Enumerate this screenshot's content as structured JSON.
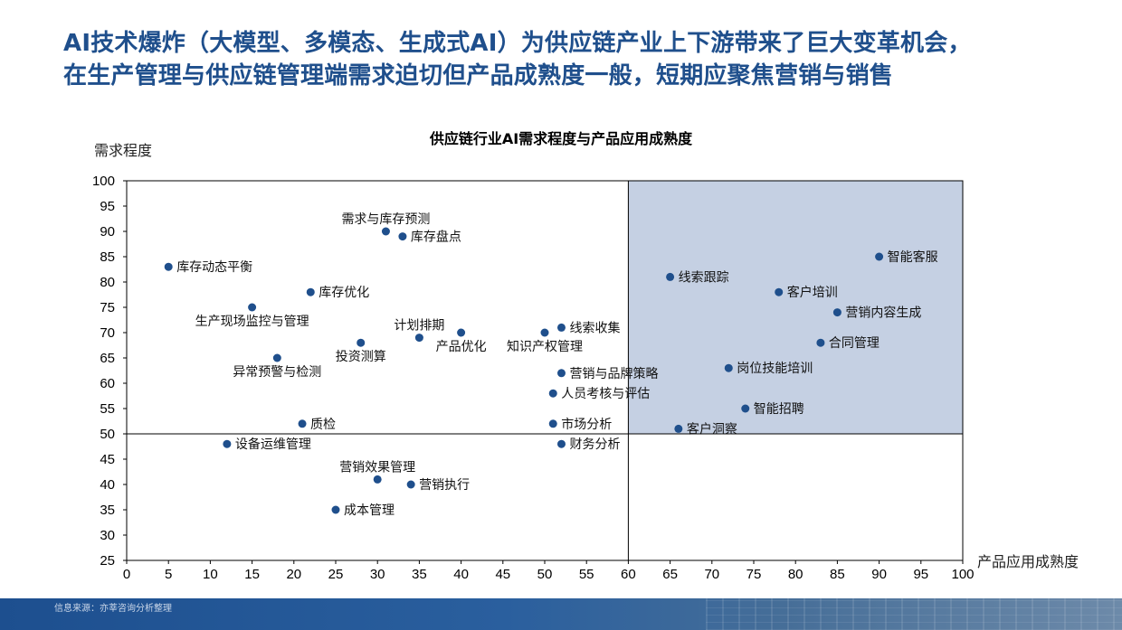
{
  "slide": {
    "title_line1": "AI技术爆炸（大模型、多模态、生成式AI）为供应链产业上下游带来了巨大变革机会，",
    "title_line2": "在生产管理与供应链管理端需求迫切但产品成熟度一般，短期应聚焦营销与销售",
    "source": "信息来源：亦莘咨询分析整理"
  },
  "colors": {
    "title": "#1f4f8c",
    "point": "#1f4f8c",
    "highlight_quadrant": "#c5d0e3",
    "axis": "#000000"
  },
  "chart_data": {
    "type": "scatter",
    "title": "供应链行业AI需求程度与产品应用成熟度",
    "xlabel": "产品应用成熟度",
    "ylabel": "需求程度",
    "xlim": [
      0,
      100
    ],
    "ylim": [
      25,
      100
    ],
    "x_ticks": [
      0,
      5,
      10,
      15,
      20,
      25,
      30,
      35,
      40,
      45,
      50,
      55,
      60,
      65,
      70,
      75,
      80,
      85,
      90,
      95,
      100
    ],
    "y_ticks": [
      25,
      30,
      35,
      40,
      45,
      50,
      55,
      60,
      65,
      70,
      75,
      80,
      85,
      90,
      95,
      100
    ],
    "divider_x": 60,
    "divider_y": 50,
    "highlight_quadrant": "top-right",
    "points": [
      {
        "label": "需求与库存预测",
        "x": 31,
        "y": 90,
        "label_pos": "above"
      },
      {
        "label": "库存盘点",
        "x": 33,
        "y": 89,
        "label_pos": "right"
      },
      {
        "label": "库存动态平衡",
        "x": 5,
        "y": 83,
        "label_pos": "right"
      },
      {
        "label": "库存优化",
        "x": 22,
        "y": 78,
        "label_pos": "right"
      },
      {
        "label": "生产现场监控与管理",
        "x": 15,
        "y": 75,
        "label_pos": "below"
      },
      {
        "label": "计划排期",
        "x": 35,
        "y": 69,
        "label_pos": "above"
      },
      {
        "label": "产品优化",
        "x": 40,
        "y": 70,
        "label_pos": "below"
      },
      {
        "label": "投资测算",
        "x": 28,
        "y": 68,
        "label_pos": "below"
      },
      {
        "label": "异常预警与检测",
        "x": 18,
        "y": 65,
        "label_pos": "below"
      },
      {
        "label": "知识产权管理",
        "x": 50,
        "y": 70,
        "label_pos": "below"
      },
      {
        "label": "线索收集",
        "x": 52,
        "y": 71,
        "label_pos": "right"
      },
      {
        "label": "营销与品牌策略",
        "x": 52,
        "y": 62,
        "label_pos": "right"
      },
      {
        "label": "人员考核与评估",
        "x": 51,
        "y": 58,
        "label_pos": "right"
      },
      {
        "label": "质检",
        "x": 21,
        "y": 52,
        "label_pos": "right"
      },
      {
        "label": "市场分析",
        "x": 51,
        "y": 52,
        "label_pos": "right"
      },
      {
        "label": "设备运维管理",
        "x": 12,
        "y": 48,
        "label_pos": "right"
      },
      {
        "label": "财务分析",
        "x": 52,
        "y": 48,
        "label_pos": "right"
      },
      {
        "label": "营销效果管理",
        "x": 30,
        "y": 41,
        "label_pos": "above"
      },
      {
        "label": "营销执行",
        "x": 34,
        "y": 40,
        "label_pos": "right"
      },
      {
        "label": "成本管理",
        "x": 25,
        "y": 35,
        "label_pos": "right"
      },
      {
        "label": "智能客服",
        "x": 90,
        "y": 85,
        "label_pos": "right"
      },
      {
        "label": "线索跟踪",
        "x": 65,
        "y": 81,
        "label_pos": "right"
      },
      {
        "label": "客户培训",
        "x": 78,
        "y": 78,
        "label_pos": "right"
      },
      {
        "label": "营销内容生成",
        "x": 85,
        "y": 74,
        "label_pos": "right"
      },
      {
        "label": "合同管理",
        "x": 83,
        "y": 68,
        "label_pos": "right"
      },
      {
        "label": "岗位技能培训",
        "x": 72,
        "y": 63,
        "label_pos": "right"
      },
      {
        "label": "智能招聘",
        "x": 74,
        "y": 55,
        "label_pos": "right"
      },
      {
        "label": "客户洞察",
        "x": 66,
        "y": 51,
        "label_pos": "right"
      }
    ]
  }
}
